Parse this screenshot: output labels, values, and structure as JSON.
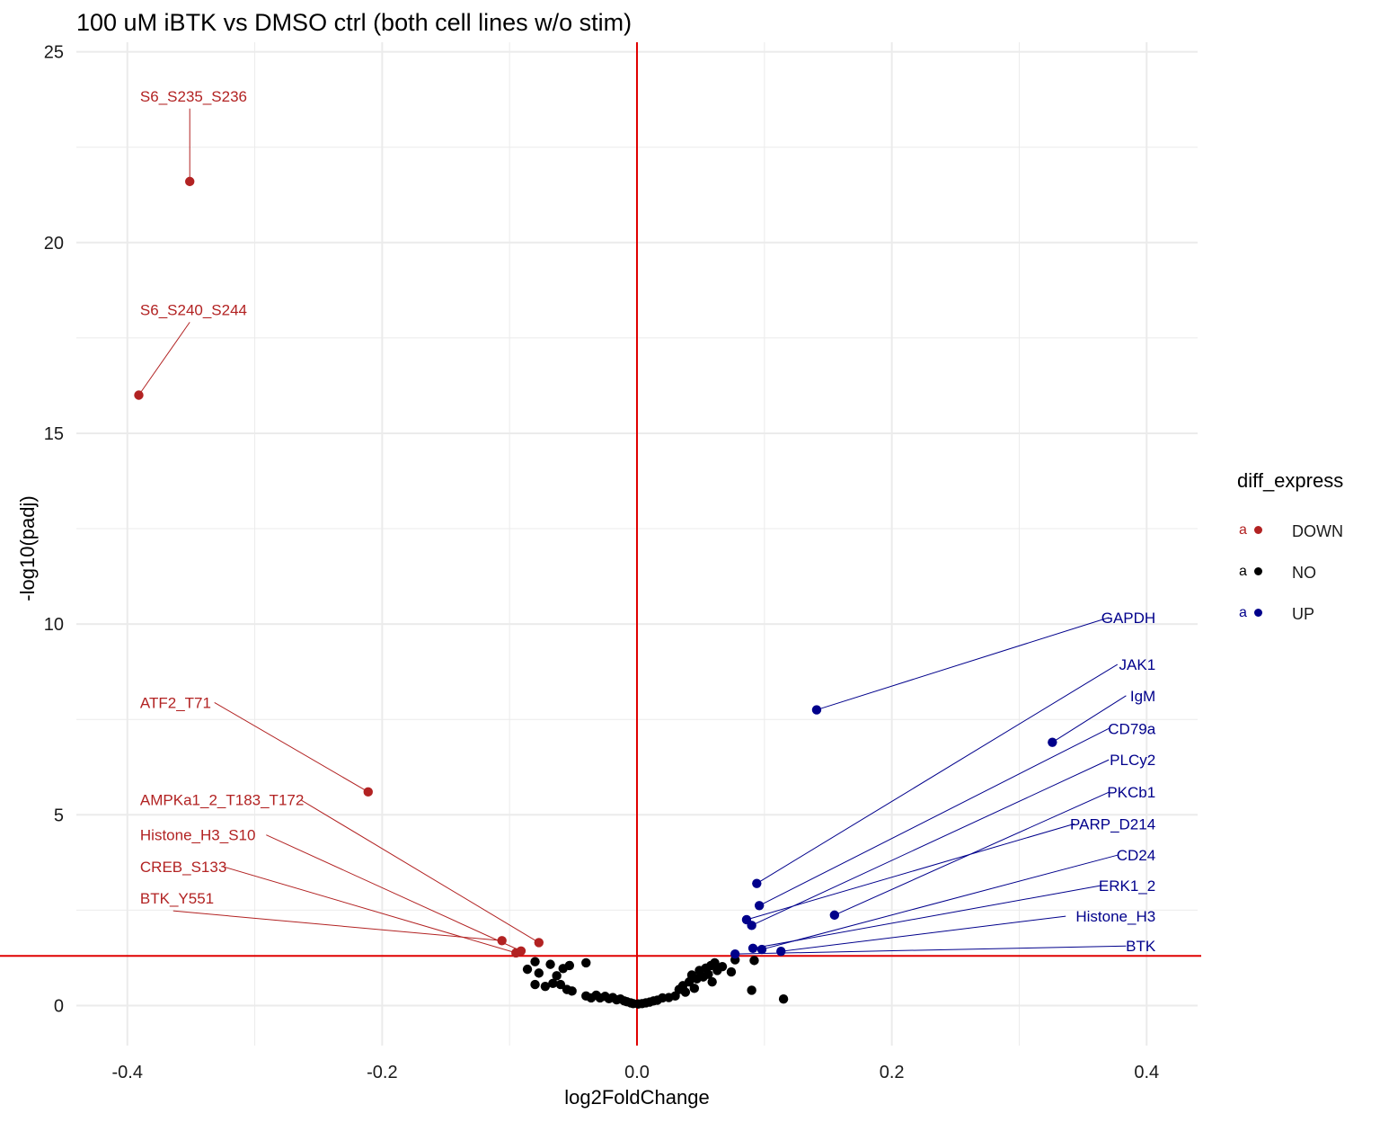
{
  "title": "100 uM iBTK vs DMSO ctrl (both cell lines w/o stim)",
  "chart_data": {
    "type": "scatter",
    "title": "100 uM iBTK vs DMSO ctrl (both cell lines w/o stim)",
    "xlabel": "log2FoldChange",
    "ylabel": "-log10(padj)",
    "xlim": [
      -0.44,
      0.44
    ],
    "ylim": [
      -1.05,
      25.25
    ],
    "x_ticks": [
      -0.4,
      -0.2,
      0.0,
      0.2,
      0.4
    ],
    "x_tick_labels": [
      "-0.4",
      "-0.2",
      "0.0",
      "0.2",
      "0.4"
    ],
    "y_ticks": [
      0,
      5,
      10,
      15,
      20,
      25
    ],
    "y_tick_labels": [
      "0",
      "5",
      "10",
      "15",
      "20",
      "25"
    ],
    "grid": true,
    "reference_lines": {
      "x": 0.0,
      "y": 1.3
    },
    "colors": {
      "DOWN": "#b22222",
      "NO": "#000000",
      "UP": "#00008b",
      "reference": "#e00000",
      "grid": "#ebebeb"
    },
    "legend": {
      "title": "diff_express",
      "position": "right",
      "key_glyph": "a",
      "entries": [
        {
          "name": "DOWN",
          "color": "#b22222"
        },
        {
          "name": "NO",
          "color": "#000000"
        },
        {
          "name": "UP",
          "color": "#00008b"
        }
      ]
    },
    "series": [
      {
        "name": "DOWN",
        "points": [
          {
            "x": -0.351,
            "y": 21.6,
            "label": "S6_S235_S236"
          },
          {
            "x": -0.391,
            "y": 16.0,
            "label": "S6_S240_S244"
          },
          {
            "x": -0.211,
            "y": 5.6,
            "label": "ATF2_T71"
          },
          {
            "x": -0.077,
            "y": 1.65,
            "label": "AMPKa1_2_T183_T172"
          },
          {
            "x": -0.091,
            "y": 1.43,
            "label": "Histone_H3_S10"
          },
          {
            "x": -0.095,
            "y": 1.38,
            "label": "CREB_S133"
          },
          {
            "x": -0.106,
            "y": 1.7,
            "label": "BTK_Y551"
          }
        ]
      },
      {
        "name": "NO",
        "points": [
          {
            "x": -0.086,
            "y": 0.95
          },
          {
            "x": -0.08,
            "y": 1.15
          },
          {
            "x": -0.08,
            "y": 0.55
          },
          {
            "x": -0.077,
            "y": 0.85
          },
          {
            "x": -0.072,
            "y": 0.5
          },
          {
            "x": -0.068,
            "y": 1.08
          },
          {
            "x": -0.066,
            "y": 0.58
          },
          {
            "x": -0.063,
            "y": 0.78
          },
          {
            "x": -0.06,
            "y": 0.55
          },
          {
            "x": -0.058,
            "y": 0.97
          },
          {
            "x": -0.055,
            "y": 0.42
          },
          {
            "x": -0.053,
            "y": 1.05
          },
          {
            "x": -0.051,
            "y": 0.38
          },
          {
            "x": -0.04,
            "y": 1.12
          },
          {
            "x": -0.04,
            "y": 0.25
          },
          {
            "x": -0.036,
            "y": 0.2
          },
          {
            "x": -0.032,
            "y": 0.27
          },
          {
            "x": -0.029,
            "y": 0.2
          },
          {
            "x": -0.025,
            "y": 0.24
          },
          {
            "x": -0.022,
            "y": 0.18
          },
          {
            "x": -0.019,
            "y": 0.21
          },
          {
            "x": -0.016,
            "y": 0.15
          },
          {
            "x": -0.013,
            "y": 0.17
          },
          {
            "x": -0.01,
            "y": 0.12
          },
          {
            "x": -0.008,
            "y": 0.1
          },
          {
            "x": -0.005,
            "y": 0.07
          },
          {
            "x": -0.003,
            "y": 0.05
          },
          {
            "x": 0.001,
            "y": 0.04
          },
          {
            "x": 0.004,
            "y": 0.05
          },
          {
            "x": 0.007,
            "y": 0.07
          },
          {
            "x": 0.01,
            "y": 0.09
          },
          {
            "x": 0.013,
            "y": 0.12
          },
          {
            "x": 0.016,
            "y": 0.14
          },
          {
            "x": 0.02,
            "y": 0.2
          },
          {
            "x": 0.025,
            "y": 0.21
          },
          {
            "x": 0.03,
            "y": 0.25
          },
          {
            "x": 0.033,
            "y": 0.42
          },
          {
            "x": 0.036,
            "y": 0.52
          },
          {
            "x": 0.038,
            "y": 0.35
          },
          {
            "x": 0.041,
            "y": 0.62
          },
          {
            "x": 0.043,
            "y": 0.8
          },
          {
            "x": 0.045,
            "y": 0.45
          },
          {
            "x": 0.047,
            "y": 0.7
          },
          {
            "x": 0.049,
            "y": 0.92
          },
          {
            "x": 0.052,
            "y": 0.75
          },
          {
            "x": 0.054,
            "y": 0.98
          },
          {
            "x": 0.056,
            "y": 0.82
          },
          {
            "x": 0.058,
            "y": 1.05
          },
          {
            "x": 0.059,
            "y": 0.62
          },
          {
            "x": 0.061,
            "y": 1.12
          },
          {
            "x": 0.063,
            "y": 0.92
          },
          {
            "x": 0.067,
            "y": 1.02
          },
          {
            "x": 0.074,
            "y": 0.88
          },
          {
            "x": 0.077,
            "y": 1.2
          },
          {
            "x": 0.09,
            "y": 0.4
          },
          {
            "x": 0.092,
            "y": 1.18
          },
          {
            "x": 0.115,
            "y": 0.17
          }
        ]
      },
      {
        "name": "UP",
        "points": [
          {
            "x": 0.141,
            "y": 7.75,
            "label": "GAPDH"
          },
          {
            "x": 0.094,
            "y": 3.2,
            "label": "JAK1"
          },
          {
            "x": 0.326,
            "y": 6.9,
            "label": "IgM"
          },
          {
            "x": 0.096,
            "y": 2.62,
            "label": "CD79a"
          },
          {
            "x": 0.09,
            "y": 2.1,
            "label": "PLCy2"
          },
          {
            "x": 0.155,
            "y": 2.37,
            "label": "PKCb1"
          },
          {
            "x": 0.086,
            "y": 2.25,
            "label": "PARP_D214"
          },
          {
            "x": 0.098,
            "y": 1.47,
            "label": "CD24"
          },
          {
            "x": 0.091,
            "y": 1.5,
            "label": "ERK1_2"
          },
          {
            "x": 0.113,
            "y": 1.42,
            "label": "Histone_H3"
          },
          {
            "x": 0.077,
            "y": 1.35,
            "label": "BTK"
          }
        ]
      }
    ],
    "annotations": [
      {
        "text": "S6_S235_S236",
        "series": "DOWN",
        "point": 0,
        "lx": -0.39,
        "ly": 23.7,
        "anchor": "start"
      },
      {
        "text": "S6_S240_S244",
        "series": "DOWN",
        "point": 1,
        "lx": -0.39,
        "ly": 18.1,
        "anchor": "start"
      },
      {
        "text": "ATF2_T71",
        "series": "DOWN",
        "point": 2,
        "lx": -0.39,
        "ly": 7.8,
        "anchor": "start"
      },
      {
        "text": "AMPKa1_2_T183_T172",
        "series": "DOWN",
        "point": 3,
        "lx": -0.39,
        "ly": 5.25,
        "anchor": "start"
      },
      {
        "text": "Histone_H3_S10",
        "series": "DOWN",
        "point": 4,
        "lx": -0.39,
        "ly": 4.33,
        "anchor": "start"
      },
      {
        "text": "CREB_S133",
        "series": "DOWN",
        "point": 5,
        "lx": -0.39,
        "ly": 3.5,
        "anchor": "start"
      },
      {
        "text": "BTK_Y551",
        "series": "DOWN",
        "point": 6,
        "lx": -0.39,
        "ly": 2.67,
        "anchor": "start"
      },
      {
        "text": "GAPDH",
        "series": "UP",
        "point": 0,
        "lx": 0.407,
        "ly": 10.03,
        "anchor": "end"
      },
      {
        "text": "JAK1",
        "series": "UP",
        "point": 1,
        "lx": 0.407,
        "ly": 8.8,
        "anchor": "end"
      },
      {
        "text": "IgM",
        "series": "UP",
        "point": 2,
        "lx": 0.407,
        "ly": 7.98,
        "anchor": "end"
      },
      {
        "text": "CD79a",
        "series": "UP",
        "point": 3,
        "lx": 0.407,
        "ly": 7.12,
        "anchor": "end"
      },
      {
        "text": "PLCy2",
        "series": "UP",
        "point": 4,
        "lx": 0.407,
        "ly": 6.3,
        "anchor": "end"
      },
      {
        "text": "PKCb1",
        "series": "UP",
        "point": 5,
        "lx": 0.407,
        "ly": 5.45,
        "anchor": "end"
      },
      {
        "text": "PARP_D214",
        "series": "UP",
        "point": 6,
        "lx": 0.407,
        "ly": 4.62,
        "anchor": "end"
      },
      {
        "text": "CD24",
        "series": "UP",
        "point": 7,
        "lx": 0.407,
        "ly": 3.8,
        "anchor": "end"
      },
      {
        "text": "ERK1_2",
        "series": "UP",
        "point": 8,
        "lx": 0.407,
        "ly": 3.0,
        "anchor": "end"
      },
      {
        "text": "Histone_H3",
        "series": "UP",
        "point": 9,
        "lx": 0.407,
        "ly": 2.2,
        "anchor": "end"
      },
      {
        "text": "BTK",
        "series": "UP",
        "point": 10,
        "lx": 0.407,
        "ly": 1.42,
        "anchor": "end"
      }
    ]
  }
}
